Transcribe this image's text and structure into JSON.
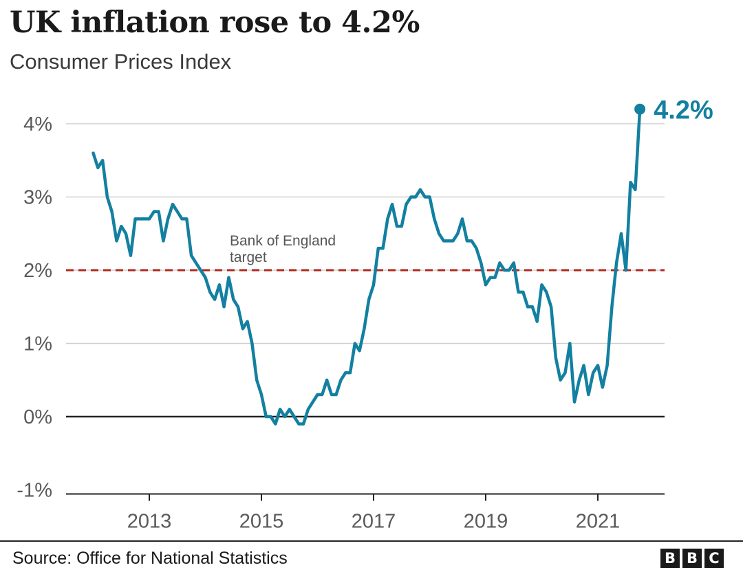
{
  "chart_data": {
    "type": "line",
    "title": "UK inflation rose to 4.2%",
    "subtitle": "Consumer Prices Index",
    "ylim": [
      -1,
      4.4
    ],
    "xlim": [
      2011.5,
      2022.3
    ],
    "y_ticks": [
      -1,
      0,
      1,
      2,
      3,
      4
    ],
    "y_tick_labels": [
      "-1%",
      "0%",
      "1%",
      "2%",
      "3%",
      "4%"
    ],
    "x_ticks": [
      2013,
      2015,
      2017,
      2019,
      2021
    ],
    "x_tick_labels": [
      "2013",
      "2015",
      "2017",
      "2019",
      "2021"
    ],
    "grid": true,
    "series": [
      {
        "color": "#1380a1",
        "x": [
          2012.0,
          2012.083,
          2012.167,
          2012.25,
          2012.333,
          2012.417,
          2012.5,
          2012.583,
          2012.667,
          2012.75,
          2012.833,
          2012.917,
          2013.0,
          2013.083,
          2013.167,
          2013.25,
          2013.333,
          2013.417,
          2013.5,
          2013.583,
          2013.667,
          2013.75,
          2013.833,
          2013.917,
          2014.0,
          2014.083,
          2014.167,
          2014.25,
          2014.333,
          2014.417,
          2014.5,
          2014.583,
          2014.667,
          2014.75,
          2014.833,
          2014.917,
          2015.0,
          2015.083,
          2015.167,
          2015.25,
          2015.333,
          2015.417,
          2015.5,
          2015.583,
          2015.667,
          2015.75,
          2015.833,
          2015.917,
          2016.0,
          2016.083,
          2016.167,
          2016.25,
          2016.333,
          2016.417,
          2016.5,
          2016.583,
          2016.667,
          2016.75,
          2016.833,
          2016.917,
          2017.0,
          2017.083,
          2017.167,
          2017.25,
          2017.333,
          2017.417,
          2017.5,
          2017.583,
          2017.667,
          2017.75,
          2017.833,
          2017.917,
          2018.0,
          2018.083,
          2018.167,
          2018.25,
          2018.333,
          2018.417,
          2018.5,
          2018.583,
          2018.667,
          2018.75,
          2018.833,
          2018.917,
          2019.0,
          2019.083,
          2019.167,
          2019.25,
          2019.333,
          2019.417,
          2019.5,
          2019.583,
          2019.667,
          2019.75,
          2019.833,
          2019.917,
          2020.0,
          2020.083,
          2020.167,
          2020.25,
          2020.333,
          2020.417,
          2020.5,
          2020.583,
          2020.667,
          2020.75,
          2020.833,
          2020.917,
          2021.0,
          2021.083,
          2021.167,
          2021.25,
          2021.333,
          2021.417,
          2021.5,
          2021.583,
          2021.667,
          2021.75
        ],
        "y": [
          3.6,
          3.4,
          3.5,
          3.0,
          2.8,
          2.4,
          2.6,
          2.5,
          2.2,
          2.7,
          2.7,
          2.7,
          2.7,
          2.8,
          2.8,
          2.4,
          2.7,
          2.9,
          2.8,
          2.7,
          2.7,
          2.2,
          2.1,
          2.0,
          1.9,
          1.7,
          1.6,
          1.8,
          1.5,
          1.9,
          1.6,
          1.5,
          1.2,
          1.3,
          1.0,
          0.5,
          0.3,
          0.0,
          0.0,
          -0.1,
          0.1,
          0.0,
          0.1,
          0.0,
          -0.1,
          -0.1,
          0.1,
          0.2,
          0.3,
          0.3,
          0.5,
          0.3,
          0.3,
          0.5,
          0.6,
          0.6,
          1.0,
          0.9,
          1.2,
          1.6,
          1.8,
          2.3,
          2.3,
          2.7,
          2.9,
          2.6,
          2.6,
          2.9,
          3.0,
          3.0,
          3.1,
          3.0,
          3.0,
          2.7,
          2.5,
          2.4,
          2.4,
          2.4,
          2.5,
          2.7,
          2.4,
          2.4,
          2.3,
          2.1,
          1.8,
          1.9,
          1.9,
          2.1,
          2.0,
          2.0,
          2.1,
          1.7,
          1.7,
          1.5,
          1.5,
          1.3,
          1.8,
          1.7,
          1.5,
          0.8,
          0.5,
          0.6,
          1.0,
          0.2,
          0.5,
          0.7,
          0.3,
          0.6,
          0.7,
          0.4,
          0.7,
          1.5,
          2.1,
          2.5,
          2.0,
          3.2,
          3.1,
          4.2
        ]
      }
    ],
    "reference_lines": [
      {
        "y": 2,
        "label_line1": "Bank of England",
        "label_line2": "target",
        "color": "#b12a1d",
        "style": "dashed"
      }
    ],
    "end_label": "4.2%"
  },
  "footer": {
    "source": "Source: Office for National Statistics",
    "logo": [
      "B",
      "B",
      "C"
    ]
  }
}
